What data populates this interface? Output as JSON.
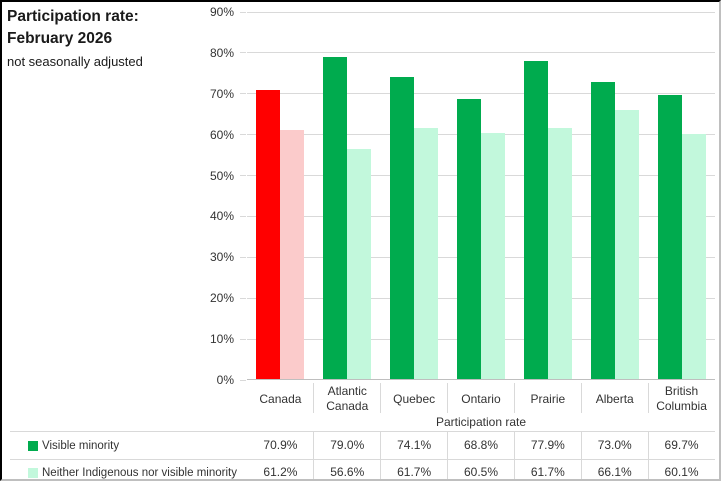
{
  "chart_data": {
    "type": "bar",
    "title_line1": "Participation rate:",
    "title_line2": "February 2026",
    "subtitle": "not seasonally adjusted",
    "categories": [
      "Canada",
      "Atlantic Canada",
      "Quebec",
      "Ontario",
      "Prairie",
      "Alberta",
      "British Columbia"
    ],
    "series": [
      {
        "name": "Visible minority",
        "values": [
          70.9,
          79.0,
          74.1,
          68.8,
          77.9,
          73.0,
          69.7
        ],
        "color_default": "#00AB4E",
        "color_highlight": "#FF0000"
      },
      {
        "name": "Neither Indigenous nor visible minority",
        "values": [
          61.2,
          56.6,
          61.7,
          60.5,
          61.7,
          66.1,
          60.1
        ],
        "color_default": "#C2F8DC",
        "color_highlight": "#FBCBCB"
      }
    ],
    "highlight_category": "Canada",
    "xlabel": "Participation rate",
    "ylabel": "",
    "ylim": [
      0,
      90
    ],
    "ytick_step": 10,
    "ytick_suffix": "%",
    "value_decimals": 1,
    "value_suffix": "%",
    "grid": true,
    "legend_position": "bottom-left",
    "data_table": true
  },
  "palette": {
    "grid": "#D9D9D9",
    "axis": "#BFBFBF",
    "text": "#262626"
  }
}
